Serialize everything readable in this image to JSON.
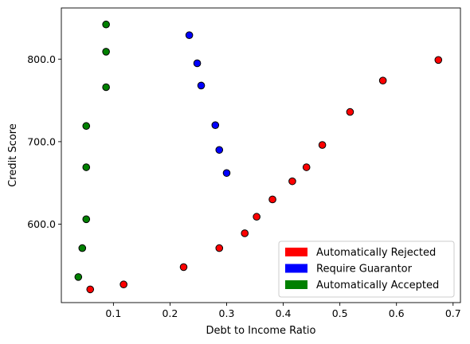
{
  "chart_data": {
    "type": "scatter",
    "xlabel": "Debt to Income Ratio",
    "ylabel": "Credit Score",
    "xlim": [
      0.008,
      0.713
    ],
    "ylim": [
      505,
      862
    ],
    "x_ticks": [
      0.1,
      0.2,
      0.3,
      0.4,
      0.5,
      0.6,
      0.7
    ],
    "x_tick_labels": [
      "0.1",
      "0.2",
      "0.3",
      "0.4",
      "0.5",
      "0.6",
      "0.7"
    ],
    "y_ticks": [
      600,
      700,
      800
    ],
    "y_tick_labels": [
      "600.0",
      "700.0",
      "800.0"
    ],
    "grid": false,
    "legend_position": "lower-right",
    "series": [
      {
        "name": "Automatically Rejected",
        "color": "#ff0000",
        "points": [
          [
            0.059,
            521
          ],
          [
            0.118,
            527
          ],
          [
            0.224,
            548
          ],
          [
            0.287,
            571
          ],
          [
            0.332,
            589
          ],
          [
            0.353,
            609
          ],
          [
            0.381,
            630
          ],
          [
            0.416,
            652
          ],
          [
            0.441,
            669
          ],
          [
            0.469,
            696
          ],
          [
            0.518,
            736
          ],
          [
            0.576,
            774
          ],
          [
            0.674,
            799
          ]
        ]
      },
      {
        "name": "Require Guarantor",
        "color": "#0000ff",
        "points": [
          [
            0.234,
            829
          ],
          [
            0.248,
            795
          ],
          [
            0.255,
            768
          ],
          [
            0.28,
            720
          ],
          [
            0.287,
            690
          ],
          [
            0.3,
            662
          ]
        ]
      },
      {
        "name": "Automatically Accepted",
        "color": "#008000",
        "points": [
          [
            0.087,
            842
          ],
          [
            0.087,
            809
          ],
          [
            0.087,
            766
          ],
          [
            0.052,
            719
          ],
          [
            0.052,
            669
          ],
          [
            0.052,
            606
          ],
          [
            0.045,
            571
          ],
          [
            0.038,
            536
          ]
        ]
      }
    ]
  }
}
